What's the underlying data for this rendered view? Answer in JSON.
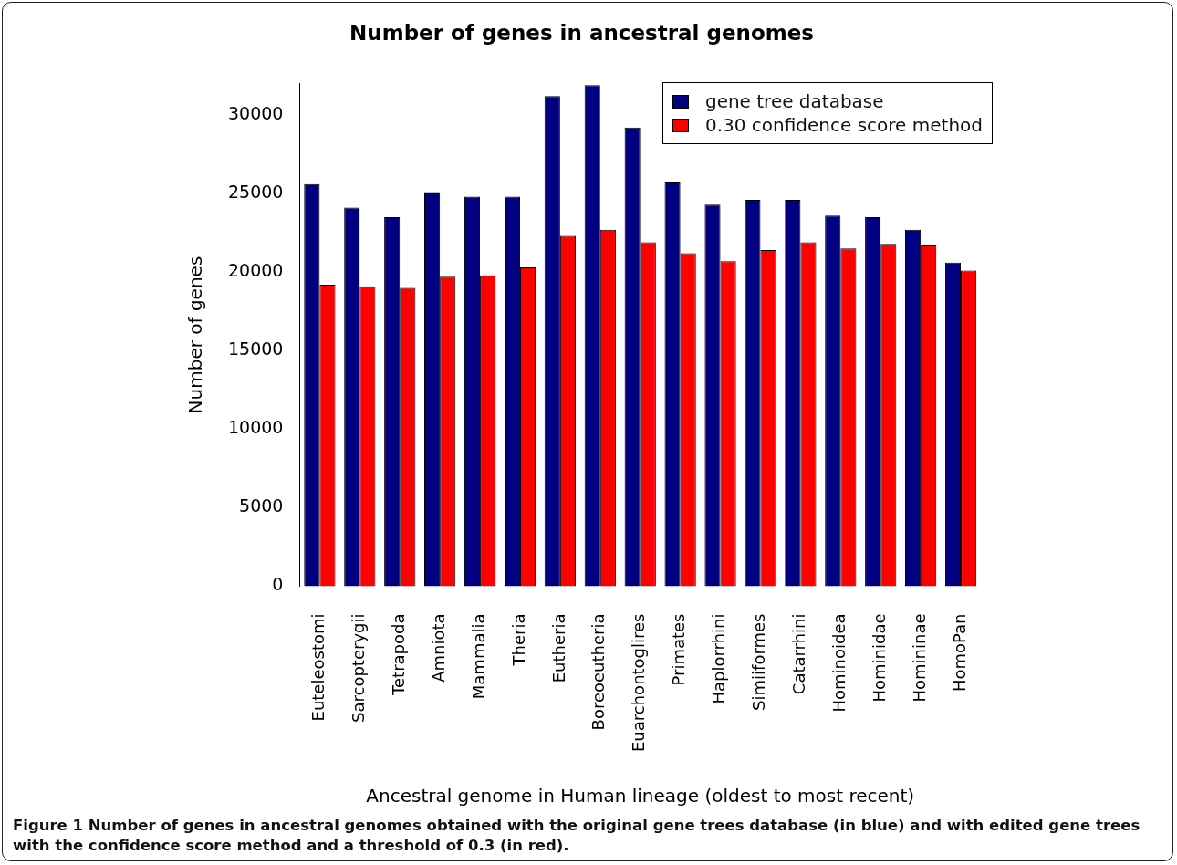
{
  "chart_data": {
    "type": "bar",
    "title": "Number of genes in ancestral genomes",
    "xlabel": "Ancestral genome in Human lineage (oldest to most recent)",
    "ylabel": "Number of genes",
    "categories": [
      "Euteleostomi",
      "Sarcopterygii",
      "Tetrapoda",
      "Amniota",
      "Mammalia",
      "Theria",
      "Eutheria",
      "Boreoeutheria",
      "Euarchontoglires",
      "Primates",
      "Haplorrhini",
      "Simiiformes",
      "Catarrhini",
      "Hominoidea",
      "Hominidae",
      "Homininae",
      "HomoPan"
    ],
    "series": [
      {
        "name": "gene tree database",
        "color": "#000080",
        "values": [
          25600,
          24100,
          23500,
          25100,
          24800,
          24800,
          31200,
          31900,
          29200,
          25700,
          24300,
          24600,
          24600,
          23600,
          23500,
          22700,
          20600
        ]
      },
      {
        "name": "0.30 confidence score method",
        "color": "#ff0000",
        "values": [
          19200,
          19100,
          19000,
          19700,
          19800,
          20300,
          22300,
          22700,
          21900,
          21200,
          20700,
          21400,
          21900,
          21500,
          21800,
          21700,
          20100
        ]
      }
    ],
    "ylim": [
      0,
      32000
    ],
    "yticks": [
      0,
      5000,
      10000,
      15000,
      20000,
      25000,
      30000
    ],
    "grid": false,
    "legend": "top right",
    "annotations": [
      "Figure 1 Number of genes in ancestral genomes obtained with the original gene trees database (in blue) and with edited gene trees with the confidence score method and a threshold of 0.3 (in red)."
    ]
  }
}
